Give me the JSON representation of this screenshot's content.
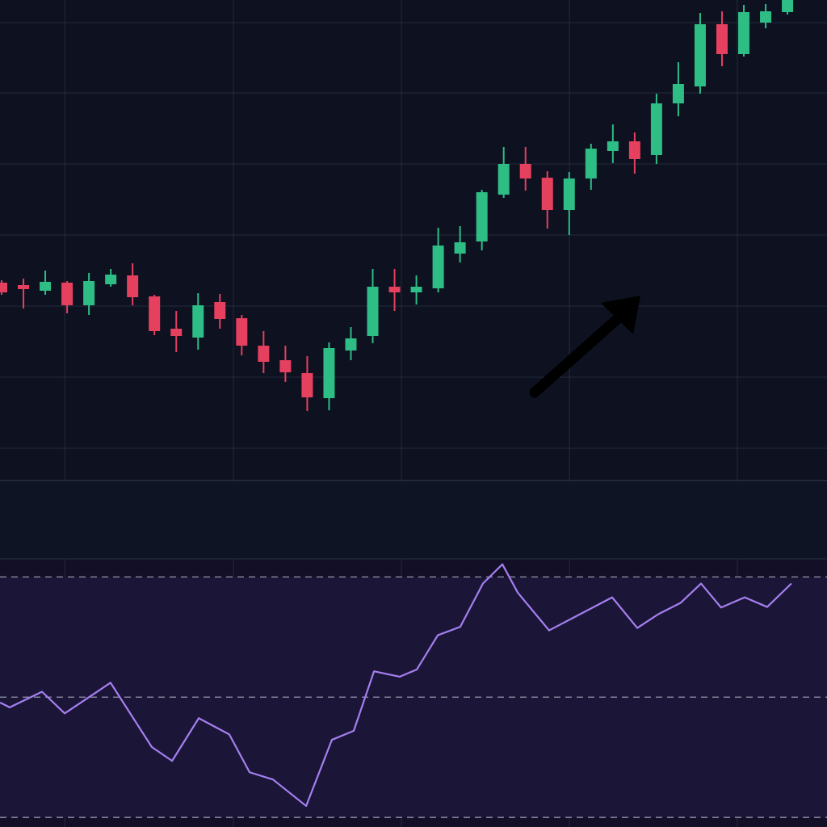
{
  "chart_data": [
    {
      "type": "candlestick",
      "x": [
        0,
        1,
        2,
        3,
        4,
        5,
        6,
        7,
        8,
        9,
        10,
        11,
        12,
        13,
        14,
        15,
        16,
        17,
        18,
        19,
        20,
        21,
        22,
        23,
        24,
        25,
        26,
        27,
        28,
        29,
        30,
        31,
        32,
        33,
        34,
        35,
        36
      ],
      "open": [
        245,
        242,
        235,
        245,
        217,
        243,
        254,
        228,
        188,
        177,
        221,
        201,
        167,
        149,
        133,
        102,
        161,
        179,
        240,
        233,
        238,
        281,
        296,
        354,
        392,
        375,
        335,
        374,
        408,
        420,
        403,
        467,
        488,
        565,
        528,
        567,
        580
      ],
      "high": [
        248,
        250,
        260,
        247,
        257,
        262,
        269,
        230,
        210,
        232,
        231,
        205,
        185,
        167,
        154,
        171,
        190,
        262,
        262,
        254,
        313,
        315,
        360,
        413,
        413,
        383,
        382,
        417,
        441,
        431,
        479,
        518,
        579,
        581,
        589,
        590,
        600
      ],
      "low": [
        230,
        213,
        230,
        207,
        205,
        240,
        217,
        180,
        159,
        162,
        188,
        155,
        133,
        122,
        86,
        87,
        149,
        170,
        210,
        218,
        233,
        270,
        285,
        350,
        359,
        312,
        304,
        360,
        393,
        380,
        392,
        451,
        479,
        513,
        525,
        560,
        577
      ],
      "close": [
        233,
        237,
        246,
        217,
        247,
        255,
        227,
        185,
        179,
        217,
        200,
        167,
        147,
        134,
        103,
        164,
        176,
        240,
        233,
        240,
        291,
        295,
        357,
        392,
        374,
        335,
        374,
        411,
        420,
        398,
        467,
        491,
        565,
        528,
        580,
        581,
        598
      ],
      "up_color": "#2ebd85",
      "down_color": "#e5405e",
      "xlim": [
        -0.074,
        37.81
      ],
      "ylim": [
        0,
        595
      ],
      "grid_x": [
        2.89,
        10.62,
        18.31,
        26.01,
        33.7
      ],
      "grid_y": [
        40,
        128,
        216,
        304,
        392,
        480,
        567
      ],
      "grid": true
    },
    {
      "type": "line",
      "x": [
        -0.07,
        0.37,
        1.85,
        2.89,
        4.99,
        6.88,
        7.81,
        9.03,
        10.43,
        11.36,
        12.43,
        13.95,
        15.13,
        16.13,
        17.06,
        18.24,
        19.02,
        19.98,
        21.01,
        22.05,
        22.94,
        23.64,
        25.08,
        27.97,
        29.12,
        30.08,
        31.11,
        32.04,
        32.96,
        34.04,
        35.07,
        36.18
      ],
      "values": [
        49.1,
        48.3,
        50.9,
        47.3,
        52.4,
        41.7,
        39.4,
        46.5,
        43.8,
        37.5,
        36.3,
        31.9,
        42.9,
        44.4,
        54.3,
        53.4,
        54.6,
        60.3,
        61.7,
        68.9,
        72.1,
        67.4,
        61.1,
        66.6,
        61.5,
        63.8,
        65.7,
        68.9,
        64.9,
        66.6,
        65.0,
        68.9
      ],
      "color": "#a57ff0",
      "xlim": [
        -0.074,
        37.81
      ],
      "ylim": [
        28.4,
        73.0
      ],
      "hlines": [
        30,
        50,
        70
      ],
      "band": [
        30,
        70
      ],
      "band_color": "#1b1638",
      "grid_x": [
        2.89,
        10.62,
        18.31,
        26.01,
        33.7
      ],
      "grid_y": [
        41.5,
        58.1
      ],
      "grid": true
    }
  ]
}
